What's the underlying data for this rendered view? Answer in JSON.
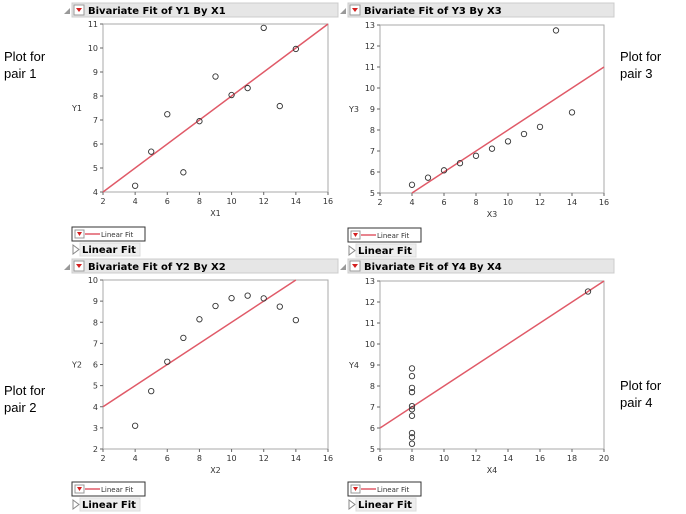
{
  "side_labels": [
    "Plot for pair 1",
    "Plot for pair 3",
    "Plot for pair 2",
    "Plot for pair 4"
  ],
  "legend_label": "Linear Fit",
  "outline_label": "Linear Fit",
  "colors": {
    "fit_line": "#e05a68",
    "header_bg": "#e6e6e6",
    "menu_icon": "#d42020"
  },
  "chart_data": [
    {
      "type": "scatter",
      "title": "Bivariate Fit of Y1 By X1",
      "xlabel": "X1",
      "ylabel": "Y1",
      "xlim": [
        2,
        16
      ],
      "ylim": [
        4,
        11
      ],
      "xticks": [
        2,
        4,
        6,
        8,
        10,
        12,
        14,
        16
      ],
      "yticks": [
        4,
        5,
        6,
        7,
        8,
        9,
        10,
        11
      ],
      "x": [
        10,
        8,
        13,
        9,
        11,
        14,
        6,
        4,
        12,
        7,
        5
      ],
      "y": [
        8.04,
        6.95,
        7.58,
        8.81,
        8.33,
        9.96,
        7.24,
        4.26,
        10.84,
        4.82,
        5.68
      ],
      "fit": {
        "intercept": 3.0,
        "slope": 0.5
      }
    },
    {
      "type": "scatter",
      "title": "Bivariate Fit of Y3 By X3",
      "xlabel": "X3",
      "ylabel": "Y3",
      "xlim": [
        2,
        16
      ],
      "ylim": [
        5,
        13
      ],
      "xticks": [
        2,
        4,
        6,
        8,
        10,
        12,
        14,
        16
      ],
      "yticks": [
        5,
        6,
        7,
        8,
        9,
        10,
        11,
        12,
        13
      ],
      "x": [
        10,
        8,
        13,
        9,
        11,
        14,
        6,
        4,
        12,
        7,
        5
      ],
      "y": [
        7.46,
        6.77,
        12.74,
        7.11,
        7.81,
        8.84,
        6.08,
        5.39,
        8.15,
        6.42,
        5.73
      ],
      "fit": {
        "intercept": 3.0,
        "slope": 0.5
      }
    },
    {
      "type": "scatter",
      "title": "Bivariate Fit of Y2 By X2",
      "xlabel": "X2",
      "ylabel": "Y2",
      "xlim": [
        2,
        16
      ],
      "ylim": [
        2,
        10
      ],
      "xticks": [
        2,
        4,
        6,
        8,
        10,
        12,
        14,
        16
      ],
      "yticks": [
        2,
        3,
        4,
        5,
        6,
        7,
        8,
        9,
        10
      ],
      "x": [
        10,
        8,
        13,
        9,
        11,
        14,
        6,
        4,
        12,
        7,
        5
      ],
      "y": [
        9.14,
        8.14,
        8.74,
        8.77,
        9.26,
        8.1,
        6.13,
        3.1,
        9.13,
        7.26,
        4.74
      ],
      "fit": {
        "intercept": 3.0,
        "slope": 0.5
      }
    },
    {
      "type": "scatter",
      "title": "Bivariate Fit of Y4 By X4",
      "xlabel": "X4",
      "ylabel": "Y4",
      "xlim": [
        6,
        20
      ],
      "ylim": [
        5,
        13
      ],
      "xticks": [
        6,
        8,
        10,
        12,
        14,
        16,
        18,
        20
      ],
      "yticks": [
        5,
        6,
        7,
        8,
        9,
        10,
        11,
        12,
        13
      ],
      "x": [
        8,
        8,
        8,
        8,
        8,
        8,
        8,
        19,
        8,
        8,
        8
      ],
      "y": [
        6.58,
        5.76,
        7.71,
        8.84,
        8.47,
        7.04,
        5.25,
        12.5,
        5.56,
        7.91,
        6.89
      ],
      "fit": {
        "intercept": 3.0,
        "slope": 0.5
      }
    }
  ]
}
